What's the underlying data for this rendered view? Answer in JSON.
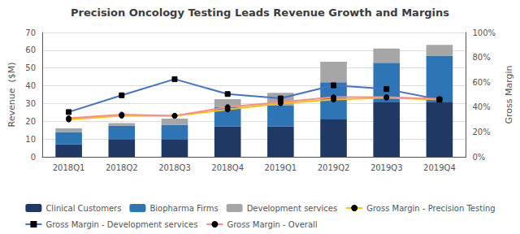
{
  "chart_data": {
    "type": "bar",
    "title": "Precision Oncology Testing Leads Revenue Growth and Margins",
    "categories": [
      "2018Q1",
      "2018Q2",
      "2018Q3",
      "2018Q4",
      "2019Q1",
      "2019Q2",
      "2019Q3",
      "2019Q4"
    ],
    "ylabel": "Revenue  ($M)",
    "y2label": "Gross Margin",
    "ylim": [
      0,
      70
    ],
    "yticks": [
      0,
      10,
      20,
      30,
      40,
      50,
      60,
      70
    ],
    "y2lim": [
      0,
      100
    ],
    "y2ticks": [
      {
        "value": 0,
        "label": "0%"
      },
      {
        "value": 20,
        "label": "20%"
      },
      {
        "value": 40,
        "label": "40%"
      },
      {
        "value": 60,
        "label": "60%"
      },
      {
        "value": 80,
        "label": "80%"
      },
      {
        "value": 100,
        "label": "100%"
      }
    ],
    "grid": true,
    "stacked": true,
    "legend": "bottom",
    "series": [
      {
        "name": "Clinical Customers",
        "type": "bar",
        "color": "#1f3864",
        "values": [
          7,
          10,
          10,
          17,
          17,
          21,
          31,
          31
        ]
      },
      {
        "name": "Biopharma Firms",
        "type": "bar",
        "color": "#2e75b6",
        "values": [
          7,
          7.5,
          8,
          11,
          12,
          21,
          22,
          26
        ]
      },
      {
        "name": "Development services",
        "type": "bar",
        "color": "#a6a6a6",
        "values": [
          2,
          1.5,
          3.5,
          4.5,
          7,
          11.5,
          8,
          6
        ]
      },
      {
        "name": "Gross Margin - Precision Testing",
        "type": "line",
        "axis": "y2",
        "marker": "circle",
        "color": "#ffc000",
        "values": [
          30,
          33,
          33,
          38,
          43,
          46,
          47.5,
          46
        ]
      },
      {
        "name": "Gross Margin - Development services",
        "type": "line",
        "axis": "y2",
        "marker": "square",
        "color": "#4472c4",
        "values": [
          36,
          49.5,
          62.5,
          50.5,
          47,
          57.5,
          54.5,
          46
        ]
      },
      {
        "name": "Gross Margin - Overall",
        "type": "line",
        "axis": "y2",
        "marker": "circle",
        "color": "#ff8c8c",
        "values": [
          31,
          34,
          33,
          40,
          44,
          48,
          48,
          46.5
        ]
      }
    ]
  }
}
